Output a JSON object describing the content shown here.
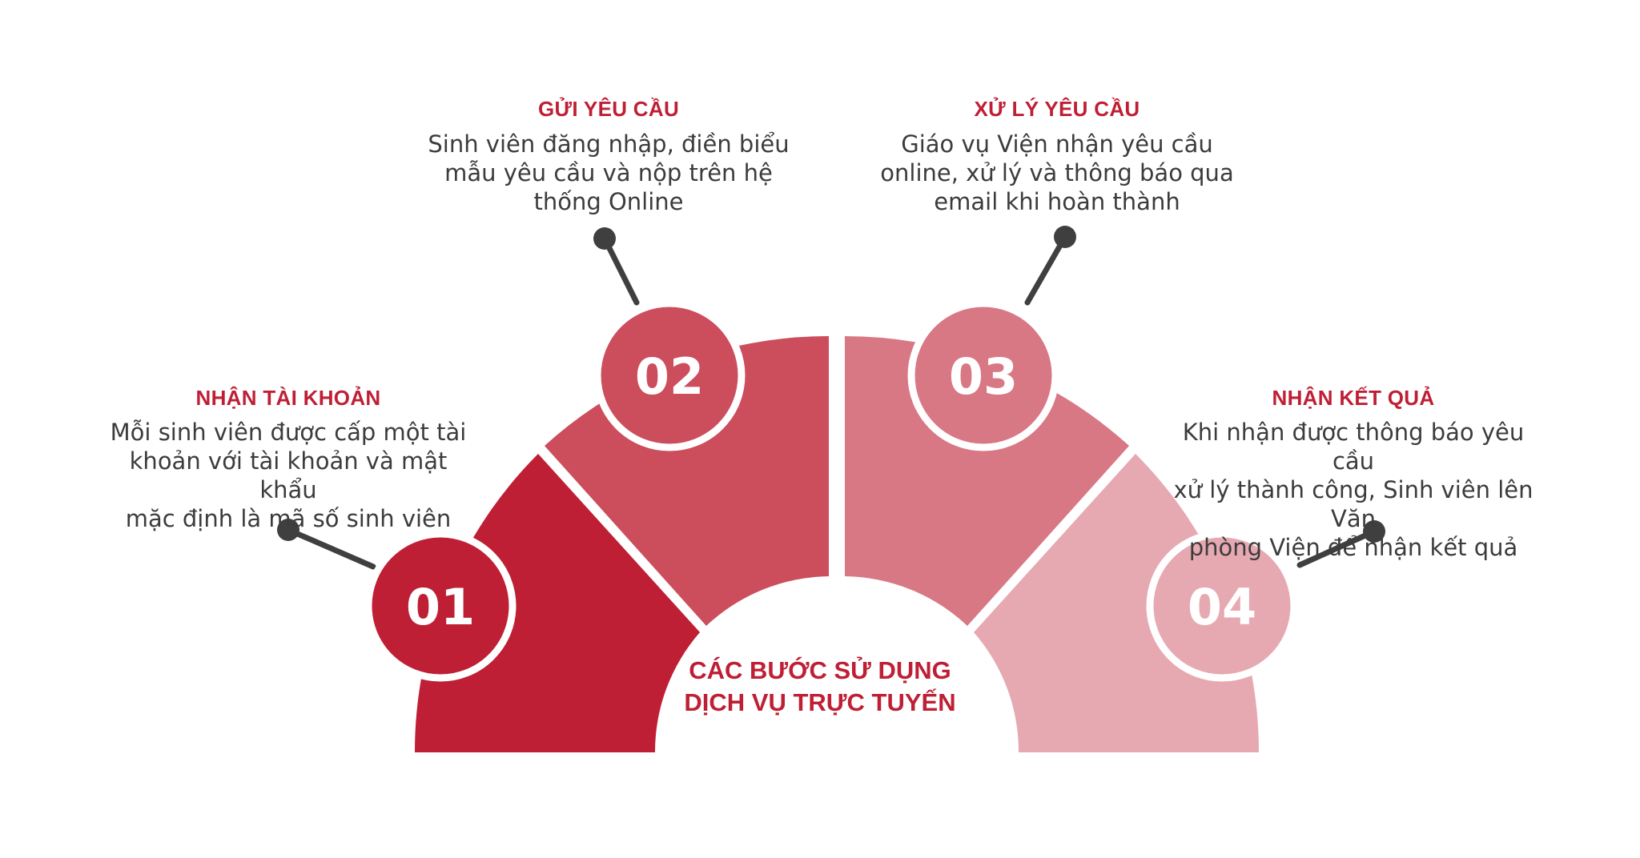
{
  "center_title_line1": "CÁC BƯỚC SỬ DỤNG",
  "center_title_line2": "DỊCH VỤ TRỰC TUYẾN",
  "steps": [
    {
      "number": "01",
      "title": "NHẬN TÀI KHOẢN",
      "desc": [
        "Mỗi sinh viên được cấp một tài",
        "khoản với tài khoản và mật khẩu",
        "mặc định là mã số sinh viên"
      ],
      "color": "#bf1f35"
    },
    {
      "number": "02",
      "title": "GỬI YÊU CẦU",
      "desc": [
        "Sinh viên đăng nhập, điền biểu",
        "mẫu yêu cầu và nộp trên hệ",
        "thống Online"
      ],
      "color": "#cc4d5c"
    },
    {
      "number": "03",
      "title": "XỬ LÝ YÊU CẦU",
      "desc": [
        "Giáo vụ Viện nhận yêu cầu",
        "online, xử lý và thông báo qua",
        "email khi hoàn thành"
      ],
      "color": "#d87884"
    },
    {
      "number": "04",
      "title": "NHẬN KẾT QUẢ",
      "desc": [
        "Khi nhận được thông báo yêu cầu",
        "xử lý thành công, Sinh viên lên Văn",
        "phòng Viện để nhận kết quả"
      ],
      "color": "#e6a9b1"
    }
  ],
  "colors": {
    "title": "#bf1f35",
    "text": "#3c3c3c",
    "connector": "#3f3f3f",
    "background": "#ffffff"
  }
}
